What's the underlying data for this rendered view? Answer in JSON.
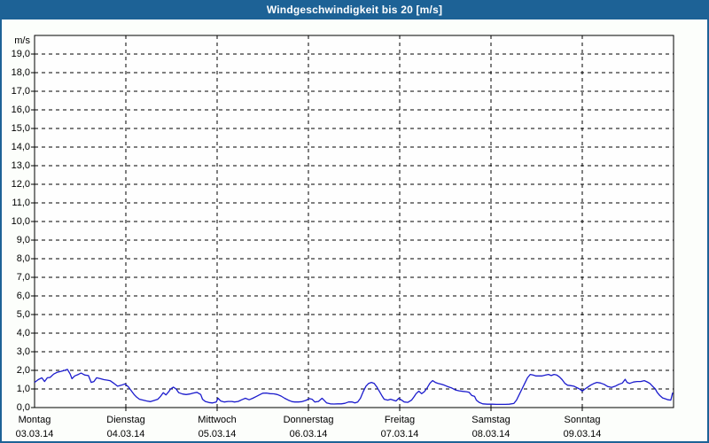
{
  "window": {
    "title": "Windgeschwindigkeit bis 20 [m/s]"
  },
  "colors": {
    "accent": "#1d6296",
    "title_text": "#ffffff",
    "line": "#1b1bcd",
    "grid": "#000000",
    "background": "#fcfefb",
    "plot_background": "#fefefe"
  },
  "chart_data": {
    "type": "line",
    "title": "Windgeschwindigkeit bis 20 [m/s]",
    "ylabel": "m/s",
    "xlabel": "",
    "unit": "m/s",
    "ylim": [
      0,
      20
    ],
    "xlim_days": [
      0,
      7
    ],
    "grid": true,
    "grid_style": "dashed",
    "ytick_step": 1,
    "ytick_labels": [
      "19,0",
      "18,0",
      "17,0",
      "16,0",
      "15,0",
      "14,0",
      "13,0",
      "12,0",
      "11,0",
      "10,0",
      "9,0",
      "8,0",
      "7,0",
      "6,0",
      "5,0",
      "4,0",
      "3,0",
      "2,0",
      "1,0",
      "0,0"
    ],
    "days": [
      {
        "name": "Montag",
        "date": "03.03.14"
      },
      {
        "name": "Dienstag",
        "date": "04.03.14"
      },
      {
        "name": "Mittwoch",
        "date": "05.03.14"
      },
      {
        "name": "Donnerstag",
        "date": "06.03.14"
      },
      {
        "name": "Freitag",
        "date": "07.03.14"
      },
      {
        "name": "Samstag",
        "date": "08.03.14"
      },
      {
        "name": "Sonntag",
        "date": "09.03.14"
      }
    ],
    "series": [
      {
        "name": "Windgeschwindigkeit",
        "color": "#1b1bcd",
        "points": [
          [
            0.0,
            1.35
          ],
          [
            0.04,
            1.5
          ],
          [
            0.08,
            1.6
          ],
          [
            0.11,
            1.4
          ],
          [
            0.14,
            1.6
          ],
          [
            0.17,
            1.62
          ],
          [
            0.21,
            1.8
          ],
          [
            0.25,
            1.9
          ],
          [
            0.29,
            1.95
          ],
          [
            0.33,
            2.0
          ],
          [
            0.36,
            2.05
          ],
          [
            0.39,
            1.8
          ],
          [
            0.41,
            1.55
          ],
          [
            0.44,
            1.7
          ],
          [
            0.48,
            1.78
          ],
          [
            0.51,
            1.85
          ],
          [
            0.55,
            1.75
          ],
          [
            0.59,
            1.72
          ],
          [
            0.62,
            1.35
          ],
          [
            0.65,
            1.4
          ],
          [
            0.68,
            1.6
          ],
          [
            0.72,
            1.55
          ],
          [
            0.76,
            1.5
          ],
          [
            0.8,
            1.47
          ],
          [
            0.83,
            1.44
          ],
          [
            0.87,
            1.3
          ],
          [
            0.91,
            1.15
          ],
          [
            0.95,
            1.2
          ],
          [
            0.99,
            1.27
          ],
          [
            1.03,
            1.1
          ],
          [
            1.06,
            0.9
          ],
          [
            1.09,
            0.7
          ],
          [
            1.12,
            0.55
          ],
          [
            1.15,
            0.45
          ],
          [
            1.19,
            0.4
          ],
          [
            1.23,
            0.35
          ],
          [
            1.27,
            0.32
          ],
          [
            1.31,
            0.38
          ],
          [
            1.35,
            0.45
          ],
          [
            1.38,
            0.6
          ],
          [
            1.41,
            0.8
          ],
          [
            1.44,
            0.68
          ],
          [
            1.47,
            0.85
          ],
          [
            1.49,
            1.0
          ],
          [
            1.52,
            1.1
          ],
          [
            1.55,
            1.0
          ],
          [
            1.58,
            0.8
          ],
          [
            1.62,
            0.73
          ],
          [
            1.66,
            0.7
          ],
          [
            1.7,
            0.73
          ],
          [
            1.74,
            0.78
          ],
          [
            1.78,
            0.82
          ],
          [
            1.82,
            0.7
          ],
          [
            1.84,
            0.45
          ],
          [
            1.87,
            0.33
          ],
          [
            1.91,
            0.27
          ],
          [
            1.95,
            0.25
          ],
          [
            1.99,
            0.3
          ],
          [
            2.01,
            0.5
          ],
          [
            2.04,
            0.35
          ],
          [
            2.08,
            0.3
          ],
          [
            2.12,
            0.33
          ],
          [
            2.16,
            0.33
          ],
          [
            2.19,
            0.3
          ],
          [
            2.23,
            0.33
          ],
          [
            2.27,
            0.42
          ],
          [
            2.31,
            0.5
          ],
          [
            2.35,
            0.42
          ],
          [
            2.39,
            0.5
          ],
          [
            2.43,
            0.6
          ],
          [
            2.47,
            0.7
          ],
          [
            2.5,
            0.77
          ],
          [
            2.54,
            0.78
          ],
          [
            2.58,
            0.75
          ],
          [
            2.62,
            0.74
          ],
          [
            2.66,
            0.7
          ],
          [
            2.7,
            0.62
          ],
          [
            2.74,
            0.5
          ],
          [
            2.78,
            0.4
          ],
          [
            2.82,
            0.32
          ],
          [
            2.85,
            0.3
          ],
          [
            2.89,
            0.3
          ],
          [
            2.93,
            0.32
          ],
          [
            2.97,
            0.38
          ],
          [
            3.01,
            0.48
          ],
          [
            3.04,
            0.45
          ],
          [
            3.07,
            0.3
          ],
          [
            3.11,
            0.33
          ],
          [
            3.15,
            0.5
          ],
          [
            3.17,
            0.4
          ],
          [
            3.2,
            0.25
          ],
          [
            3.24,
            0.2
          ],
          [
            3.28,
            0.19
          ],
          [
            3.32,
            0.2
          ],
          [
            3.36,
            0.2
          ],
          [
            3.4,
            0.23
          ],
          [
            3.44,
            0.3
          ],
          [
            3.48,
            0.3
          ],
          [
            3.51,
            0.25
          ],
          [
            3.54,
            0.3
          ],
          [
            3.57,
            0.5
          ],
          [
            3.6,
            0.85
          ],
          [
            3.63,
            1.15
          ],
          [
            3.66,
            1.3
          ],
          [
            3.69,
            1.35
          ],
          [
            3.72,
            1.3
          ],
          [
            3.75,
            1.1
          ],
          [
            3.78,
            0.85
          ],
          [
            3.81,
            0.6
          ],
          [
            3.83,
            0.45
          ],
          [
            3.87,
            0.4
          ],
          [
            3.9,
            0.45
          ],
          [
            3.93,
            0.4
          ],
          [
            3.96,
            0.35
          ],
          [
            3.99,
            0.5
          ],
          [
            4.02,
            0.4
          ],
          [
            4.05,
            0.3
          ],
          [
            4.09,
            0.28
          ],
          [
            4.13,
            0.4
          ],
          [
            4.16,
            0.6
          ],
          [
            4.18,
            0.75
          ],
          [
            4.21,
            0.88
          ],
          [
            4.24,
            0.75
          ],
          [
            4.27,
            0.85
          ],
          [
            4.3,
            1.05
          ],
          [
            4.33,
            1.3
          ],
          [
            4.36,
            1.45
          ],
          [
            4.39,
            1.35
          ],
          [
            4.42,
            1.3
          ],
          [
            4.46,
            1.25
          ],
          [
            4.49,
            1.2
          ],
          [
            4.53,
            1.12
          ],
          [
            4.57,
            1.05
          ],
          [
            4.61,
            0.95
          ],
          [
            4.65,
            0.9
          ],
          [
            4.69,
            0.87
          ],
          [
            4.73,
            0.85
          ],
          [
            4.76,
            0.82
          ],
          [
            4.79,
            0.65
          ],
          [
            4.82,
            0.6
          ],
          [
            4.84,
            0.4
          ],
          [
            4.87,
            0.28
          ],
          [
            4.91,
            0.2
          ],
          [
            4.96,
            0.18
          ],
          [
            5.01,
            0.18
          ],
          [
            5.06,
            0.17
          ],
          [
            5.11,
            0.17
          ],
          [
            5.16,
            0.17
          ],
          [
            5.2,
            0.18
          ],
          [
            5.25,
            0.22
          ],
          [
            5.28,
            0.4
          ],
          [
            5.31,
            0.7
          ],
          [
            5.34,
            1.0
          ],
          [
            5.37,
            1.3
          ],
          [
            5.4,
            1.6
          ],
          [
            5.43,
            1.78
          ],
          [
            5.46,
            1.75
          ],
          [
            5.49,
            1.7
          ],
          [
            5.52,
            1.7
          ],
          [
            5.56,
            1.7
          ],
          [
            5.6,
            1.75
          ],
          [
            5.63,
            1.78
          ],
          [
            5.66,
            1.72
          ],
          [
            5.69,
            1.78
          ],
          [
            5.72,
            1.75
          ],
          [
            5.75,
            1.65
          ],
          [
            5.78,
            1.5
          ],
          [
            5.81,
            1.3
          ],
          [
            5.84,
            1.2
          ],
          [
            5.87,
            1.18
          ],
          [
            5.91,
            1.15
          ],
          [
            5.94,
            1.07
          ],
          [
            5.97,
            1.0
          ],
          [
            6.0,
            0.88
          ],
          [
            6.03,
            1.0
          ],
          [
            6.06,
            1.1
          ],
          [
            6.09,
            1.2
          ],
          [
            6.13,
            1.3
          ],
          [
            6.16,
            1.35
          ],
          [
            6.2,
            1.32
          ],
          [
            6.24,
            1.25
          ],
          [
            6.28,
            1.13
          ],
          [
            6.32,
            1.08
          ],
          [
            6.36,
            1.15
          ],
          [
            6.4,
            1.25
          ],
          [
            6.44,
            1.32
          ],
          [
            6.47,
            1.52
          ],
          [
            6.49,
            1.35
          ],
          [
            6.52,
            1.3
          ],
          [
            6.56,
            1.37
          ],
          [
            6.6,
            1.4
          ],
          [
            6.64,
            1.4
          ],
          [
            6.68,
            1.45
          ],
          [
            6.71,
            1.38
          ],
          [
            6.74,
            1.3
          ],
          [
            6.77,
            1.15
          ],
          [
            6.8,
            1.0
          ],
          [
            6.82,
            0.82
          ],
          [
            6.85,
            0.65
          ],
          [
            6.88,
            0.52
          ],
          [
            6.91,
            0.47
          ],
          [
            6.94,
            0.42
          ],
          [
            6.97,
            0.4
          ],
          [
            6.99,
            0.8
          ]
        ]
      }
    ]
  }
}
